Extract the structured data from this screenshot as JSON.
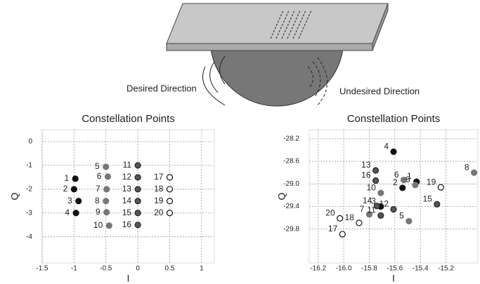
{
  "illustration": {
    "labels": [
      "Desired Direction",
      "Undesired Direction"
    ]
  },
  "chart_data": [
    {
      "type": "scatter",
      "title": "Constellation Points",
      "xlabel": "I",
      "ylabel": "Q",
      "xlim": [
        -1.5,
        1.2
      ],
      "ylim": [
        -5.1,
        0.5
      ],
      "xticks": [
        -1.5,
        -1,
        -0.5,
        0,
        0.5,
        1
      ],
      "yticks": [
        0,
        -1,
        -2,
        -3,
        -4
      ],
      "grid": true,
      "series": [
        {
          "color": "#111111",
          "edgecolor": "#111111",
          "x": [
            -0.98,
            -1.0,
            -0.93,
            -0.97
          ],
          "values": [
            -1.56,
            -2.0,
            -2.5,
            -3.0
          ],
          "labels": [
            "1",
            "2",
            "3",
            "4"
          ]
        },
        {
          "color": "#777777",
          "edgecolor": "#777777",
          "x": [
            -0.5,
            -0.47,
            -0.49,
            -0.5,
            -0.49,
            -0.45
          ],
          "values": [
            -1.06,
            -1.47,
            -2.0,
            -2.5,
            -2.97,
            -3.53
          ],
          "labels": [
            "5",
            "6",
            "7",
            "8",
            "9",
            "10"
          ]
        },
        {
          "color": "#555555",
          "edgecolor": "#222222",
          "x": [
            0,
            0,
            0,
            0,
            0,
            0
          ],
          "values": [
            -1.0,
            -1.5,
            -2.0,
            -2.5,
            -3.0,
            -3.5
          ],
          "labels": [
            "11",
            "12",
            "13",
            "14",
            "15",
            "16"
          ]
        },
        {
          "color": "#ffffff",
          "edgecolor": "#111111",
          "x": [
            0.5,
            0.5,
            0.5,
            0.5
          ],
          "values": [
            -1.5,
            -2.0,
            -2.5,
            -3.0
          ],
          "labels": [
            "17",
            "18",
            "19",
            "20"
          ]
        }
      ]
    },
    {
      "type": "scatter",
      "title": "Constellation Points",
      "xlabel": "I",
      "ylabel": "Q",
      "xlim": [
        -16.27,
        -14.95
      ],
      "ylim": [
        -30.4,
        -28.04
      ],
      "xticks": [
        -16.2,
        {
          "value": -16,
          "label": "-16.0"
        },
        -15.8,
        -15.6,
        -15.4,
        -15.2
      ],
      "yticks": [
        -28.2,
        -28.6,
        {
          "value": -29,
          "label": "-29.0"
        },
        -29.4,
        -29.8
      ],
      "grid": true,
      "series": [
        {
          "color": "#111111",
          "edgecolor": "#111111",
          "x": [
            -15.43,
            -15.54,
            -15.71,
            -15.61
          ],
          "values": [
            -28.96,
            -29.07,
            -29.4,
            -28.43
          ],
          "labels": [
            "1",
            "2",
            "3",
            "4"
          ]
        },
        {
          "color": "#777777",
          "edgecolor": "#777777",
          "x": [
            -15.49,
            -15.53,
            -15.8,
            -14.98,
            -15.44,
            -15.71
          ],
          "values": [
            -29.66,
            -28.93,
            -29.54,
            -28.8,
            -29.02,
            -29.16
          ],
          "labels": [
            "5",
            "6",
            "7",
            "8",
            "9",
            "10"
          ]
        },
        {
          "color": "#555555",
          "edgecolor": "#222222",
          "x": [
            -15.71,
            -15.61,
            -15.75,
            -15.74,
            -15.27,
            -15.75
          ],
          "values": [
            -29.56,
            -29.45,
            -28.76,
            -29.39,
            -29.36,
            -28.94
          ],
          "labels": [
            "11",
            "12",
            "13",
            "14",
            "15",
            "16"
          ]
        },
        {
          "color": "#ffffff",
          "edgecolor": "#111111",
          "x": [
            -16.01,
            -15.88,
            -15.24,
            -16.03
          ],
          "values": [
            -29.89,
            -29.69,
            -29.06,
            -29.61
          ],
          "labels": [
            "17",
            "18",
            "19",
            "20"
          ]
        }
      ]
    }
  ]
}
